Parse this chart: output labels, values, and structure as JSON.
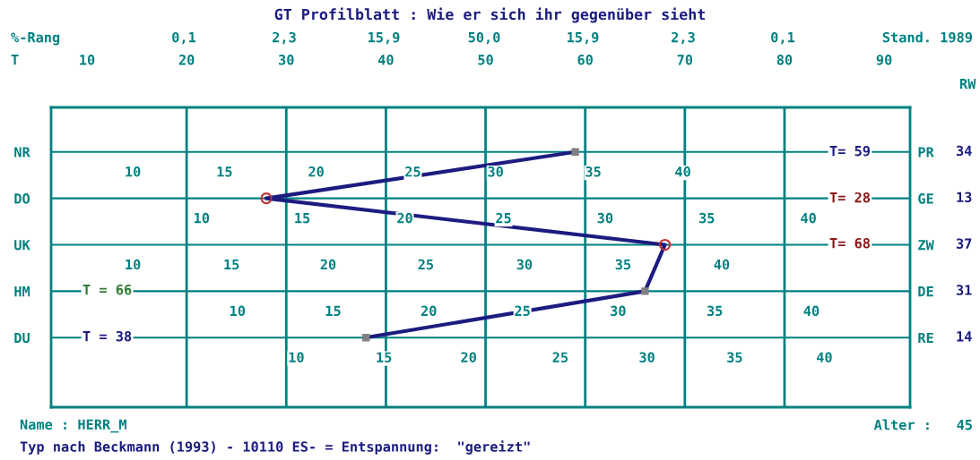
{
  "chart_data": {
    "type": "line",
    "orientation": "horizontal",
    "title": "GT Profilblatt : Wie er sich ihr gegenüber sieht",
    "xlabel": "T",
    "categories": [
      "NR",
      "DO",
      "UK",
      "HM",
      "DU"
    ],
    "y2_categories": [
      "PR",
      "GE",
      "ZW",
      "DE",
      "RE"
    ],
    "xlim": [
      6.4,
      92.6
    ],
    "xticks": [
      10,
      20,
      30,
      40,
      50,
      60,
      70,
      80,
      90
    ],
    "grid": "y",
    "ref_lines": [
      {
        "axis": "x",
        "value": 20,
        "color": "#008080"
      },
      {
        "axis": "x",
        "value": 30,
        "color": "#008080"
      },
      {
        "axis": "x",
        "value": 40,
        "color": "#008080"
      },
      {
        "axis": "x",
        "value": 50,
        "color": "#008080"
      },
      {
        "axis": "x",
        "value": 60,
        "color": "#008080"
      },
      {
        "axis": "x",
        "value": 70,
        "color": "#008080"
      },
      {
        "axis": "x",
        "value": 80,
        "color": "#008080"
      }
    ],
    "series": [
      {
        "color": "#1c1c80",
        "marker": "none",
        "line_style": "solid",
        "values": [
          59,
          28,
          68,
          66,
          38
        ]
      },
      {
        "type": "scatter",
        "color": "#c03030",
        "marker": "circle",
        "values": [
          null,
          28,
          68,
          null,
          null
        ]
      },
      {
        "type": "scatter",
        "color": "#808080",
        "marker": "square",
        "values": [
          59,
          null,
          null,
          66,
          38
        ]
      }
    ],
    "annotations": [
      "10",
      "15",
      "20",
      "25",
      "30",
      "35",
      "40",
      "10",
      "15",
      "20",
      "25",
      "30",
      "35",
      "40",
      "10",
      "15",
      "20",
      "25",
      "30",
      "35",
      "40",
      "10",
      "15",
      "20",
      "25",
      "30",
      "35",
      "40",
      "10",
      "15",
      "20",
      "25",
      "30",
      "35",
      "40",
      "34",
      "13",
      "37",
      "31",
      "14",
      "%-Rang",
      "0,1",
      "2,3",
      "15,9",
      "50,0",
      "15,9",
      "2,3",
      "0,1",
      "T= 59",
      "T= 28",
      "T= 68",
      "T = 66",
      "T = 38",
      "RW",
      "Stand. 1989",
      "Name : HERR_M",
      "Alter :   45",
      "Typ nach Beckmann (1993) - 10110 ES- = Entspannung:  \"gereizt\""
    ]
  }
}
